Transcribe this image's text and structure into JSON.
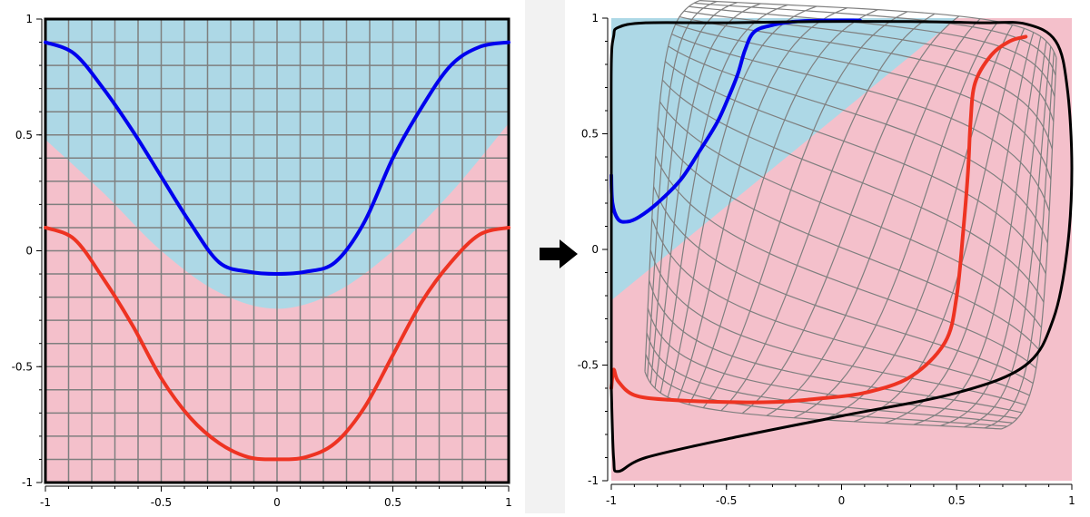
{
  "chart_data": [
    {
      "type": "line",
      "xlim": [
        -1,
        1
      ],
      "ylim": [
        -1,
        1
      ],
      "xticks": [
        -1,
        -0.5,
        0,
        0.5,
        1
      ],
      "yticks": [
        -1,
        -0.5,
        0,
        0.5,
        1
      ],
      "tick_labels_x": [
        "-1",
        "-0.5",
        "0",
        "0.5",
        "1"
      ],
      "tick_labels_y": [
        "-1",
        "-0.5",
        "0",
        "0.5",
        "1"
      ],
      "grid": true,
      "region_colors": {
        "upper": "#add8e6",
        "lower": "#f4c0cb"
      },
      "boundary": {
        "x": [
          -1,
          -0.75,
          -0.5,
          -0.25,
          0,
          0.25,
          0.5,
          0.75,
          1
        ],
        "y": [
          0.48,
          0.25,
          0.0,
          -0.18,
          -0.25,
          -0.18,
          0.0,
          0.25,
          0.55
        ]
      },
      "series": [
        {
          "color": "#0000ee",
          "x": [
            -1,
            -0.875,
            -0.75,
            -0.625,
            -0.5,
            -0.375,
            -0.25,
            -0.125,
            0,
            0.125,
            0.25,
            0.375,
            0.5,
            0.625,
            0.75,
            0.875,
            1
          ],
          "y": [
            0.9,
            0.85,
            0.7,
            0.52,
            0.32,
            0.12,
            -0.05,
            -0.09,
            -0.1,
            -0.09,
            -0.05,
            0.12,
            0.4,
            0.62,
            0.8,
            0.88,
            0.9
          ]
        },
        {
          "color": "#ee3322",
          "x": [
            -1,
            -0.875,
            -0.75,
            -0.625,
            -0.5,
            -0.375,
            -0.25,
            -0.125,
            0,
            0.125,
            0.25,
            0.375,
            0.5,
            0.625,
            0.75,
            0.875,
            1
          ],
          "y": [
            0.1,
            0.05,
            -0.12,
            -0.32,
            -0.55,
            -0.72,
            -0.83,
            -0.89,
            -0.9,
            -0.89,
            -0.83,
            -0.68,
            -0.45,
            -0.22,
            -0.05,
            0.07,
            0.1
          ]
        }
      ]
    },
    {
      "type": "line",
      "xlim": [
        -1,
        1
      ],
      "ylim": [
        -1,
        1
      ],
      "xticks": [
        -1,
        -0.5,
        0,
        0.5,
        1
      ],
      "yticks": [
        -1,
        -0.5,
        0,
        0.5,
        1
      ],
      "tick_labels_x": [
        "-1",
        "-0.5",
        "0",
        "0.5",
        "1"
      ],
      "tick_labels_y": [
        "-1",
        "-0.5",
        "0",
        "0.5",
        "1"
      ],
      "region_colors": {
        "upper": "#add8e6",
        "lower": "#f4c0cb"
      },
      "boundary_line": {
        "x": [
          -1,
          0.5
        ],
        "y": [
          -0.22,
          1
        ]
      },
      "series": [
        {
          "color": "#0000ee",
          "x": [
            -1,
            -0.995,
            -0.97,
            -0.93,
            -0.88,
            -0.8,
            -0.7,
            -0.62,
            -0.54,
            -0.49,
            -0.45,
            -0.42,
            -0.38,
            -0.3,
            -0.2,
            -0.08,
            0.08
          ],
          "y": [
            0.32,
            0.2,
            0.13,
            0.12,
            0.14,
            0.2,
            0.3,
            0.42,
            0.55,
            0.66,
            0.76,
            0.86,
            0.94,
            0.97,
            0.985,
            0.99,
            0.99
          ]
        },
        {
          "color": "#ee3322",
          "x": [
            -1,
            -0.99,
            -0.97,
            -0.9,
            -0.75,
            -0.5,
            -0.3,
            -0.1,
            0.1,
            0.3,
            0.45,
            0.5,
            0.53,
            0.55,
            0.56,
            0.58,
            0.65,
            0.73,
            0.8
          ],
          "y": [
            -0.6,
            -0.52,
            -0.57,
            -0.63,
            -0.65,
            -0.66,
            -0.66,
            -0.645,
            -0.62,
            -0.55,
            -0.4,
            -0.2,
            0.1,
            0.35,
            0.55,
            0.72,
            0.84,
            0.9,
            0.92
          ]
        },
        {
          "color": "#000000",
          "x": [
            -1,
            -1,
            -0.99,
            -0.97,
            -0.85,
            -0.5,
            -0.1,
            0.3,
            0.6,
            0.8,
            0.93,
            0.98,
            1,
            0.98,
            0.92,
            0.8,
            0.5,
            0,
            -0.5,
            -0.85,
            -0.97,
            -0.99,
            -1
          ],
          "y": [
            0.35,
            0.8,
            0.92,
            0.96,
            0.98,
            0.98,
            0.985,
            0.985,
            0.98,
            0.975,
            0.9,
            0.7,
            0.35,
            0.0,
            -0.3,
            -0.5,
            -0.62,
            -0.72,
            -0.82,
            -0.9,
            -0.96,
            -0.9,
            -0.6
          ]
        }
      ]
    }
  ],
  "arrow": {
    "color": "#000000"
  }
}
